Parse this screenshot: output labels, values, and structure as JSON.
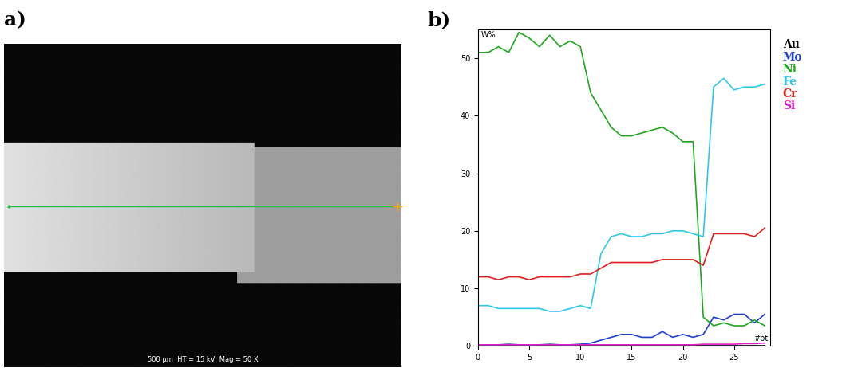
{
  "panel_labels": [
    "a)",
    "b)"
  ],
  "micrograph": {
    "caption": "500 µm  HT = 15 kV  Mag = 50 X"
  },
  "chart_data": {
    "type": "line",
    "x_label": "#pt",
    "y_label": "W%",
    "x": [
      0,
      1,
      2,
      3,
      4,
      5,
      6,
      7,
      8,
      9,
      10,
      11,
      12,
      13,
      14,
      15,
      16,
      17,
      18,
      19,
      20,
      21,
      22,
      23,
      24,
      25,
      26,
      27,
      28
    ],
    "xlim": [
      0,
      28.5
    ],
    "xticks": [
      0,
      5,
      10,
      15,
      20,
      25
    ],
    "ylim": [
      0,
      55
    ],
    "yticks": [
      0,
      10,
      20,
      30,
      40,
      50
    ],
    "grid": false,
    "legend": "upper left",
    "series": [
      {
        "name": "Au",
        "color": "#000000",
        "values": [
          0,
          0,
          0,
          0,
          0,
          0,
          0,
          0,
          0,
          0,
          0,
          0,
          0,
          0,
          0,
          0,
          0,
          0,
          0,
          0,
          0,
          0,
          0,
          0,
          0,
          0,
          0,
          0,
          0
        ]
      },
      {
        "name": "Mo",
        "color": "#1f3fd0",
        "values": [
          0.2,
          0.2,
          0.2,
          0.3,
          0.2,
          0.2,
          0.2,
          0.3,
          0.2,
          0.2,
          0.3,
          0.5,
          1.0,
          1.5,
          2.0,
          2.0,
          1.5,
          1.5,
          2.5,
          1.5,
          2.0,
          1.5,
          2.0,
          5.0,
          4.5,
          5.5,
          5.5,
          4.0,
          5.5
        ]
      },
      {
        "name": "Ni",
        "color": "#1fa81f",
        "values": [
          51,
          51,
          52,
          51,
          54.5,
          53.5,
          52,
          54,
          52,
          53,
          52,
          44,
          41,
          38,
          36.5,
          36.5,
          37,
          37.5,
          38,
          37,
          35.5,
          35.5,
          5,
          3.5,
          4,
          3.5,
          3.5,
          4.5,
          3.5
        ]
      },
      {
        "name": "Fe",
        "color": "#2ec8e8",
        "values": [
          7,
          7,
          6.5,
          6.5,
          6.5,
          6.5,
          6.5,
          6,
          6,
          6.5,
          7,
          6.5,
          16,
          19,
          19.5,
          19,
          19,
          19.5,
          19.5,
          20,
          20,
          19.5,
          19,
          45,
          46.5,
          44.5,
          45,
          45,
          45.5
        ]
      },
      {
        "name": "Cr",
        "color": "#e02020",
        "values": [
          12,
          12,
          11.5,
          12,
          12,
          11.5,
          12,
          12,
          12,
          12,
          12.5,
          12.5,
          13.5,
          14.5,
          14.5,
          14.5,
          14.5,
          14.5,
          15,
          15,
          15,
          15,
          14,
          19.5,
          19.5,
          19.5,
          19.5,
          19,
          20.5
        ]
      },
      {
        "name": "Si",
        "color": "#e020c8",
        "values": [
          0.2,
          0.2,
          0.2,
          0.2,
          0.2,
          0.2,
          0.2,
          0.2,
          0.2,
          0.2,
          0.2,
          0.2,
          0.2,
          0.2,
          0.2,
          0.2,
          0.2,
          0.2,
          0.2,
          0.2,
          0.2,
          0.2,
          0.3,
          0.3,
          0.3,
          0.3,
          0.4,
          0.4,
          0.5
        ]
      }
    ]
  }
}
